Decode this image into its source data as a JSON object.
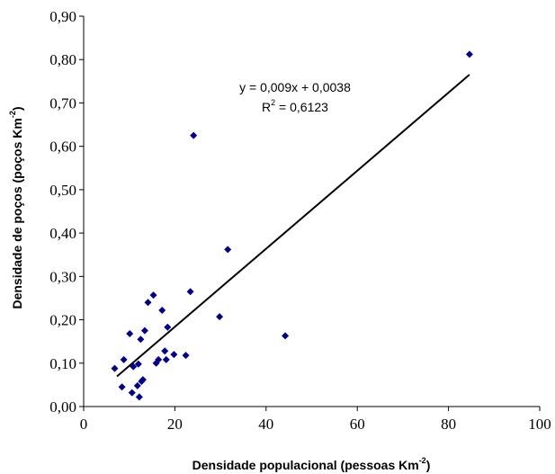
{
  "chart_data": {
    "type": "scatter",
    "xlabel": "Densidade populacional (pessoas Km",
    "xlabel_sup": "-2",
    "xlabel_tail": ")",
    "ylabel": "Densidade de poços (poços Km",
    "ylabel_sup": "-2",
    "ylabel_tail": ")",
    "xlim": [
      0,
      100
    ],
    "ylim": [
      0,
      0.9
    ],
    "xticks": [
      0,
      20,
      40,
      60,
      80,
      100
    ],
    "xtick_labels": [
      "0",
      "20",
      "40",
      "60",
      "80",
      "100"
    ],
    "yticks": [
      0,
      0.1,
      0.2,
      0.3,
      0.4,
      0.5,
      0.6,
      0.7,
      0.8,
      0.9
    ],
    "ytick_labels": [
      "0,00",
      "0,10",
      "0,20",
      "0,30",
      "0,40",
      "0,50",
      "0,60",
      "0,70",
      "0,80",
      "0,90"
    ],
    "grid": false,
    "marker_color": "#00008B",
    "trendline": {
      "slope": 0.009,
      "intercept": 0.0038,
      "x_range": [
        7.3,
        84.6
      ],
      "color": "#000000"
    },
    "equation": "y = 0,009x + 0,0038",
    "r2_prefix": "R",
    "r2_sup": "2",
    "r2_value": " = 0,6123",
    "points": [
      {
        "x": 6.8,
        "y": 0.088
      },
      {
        "x": 8.4,
        "y": 0.045
      },
      {
        "x": 8.8,
        "y": 0.108
      },
      {
        "x": 10.1,
        "y": 0.168
      },
      {
        "x": 10.6,
        "y": 0.032
      },
      {
        "x": 10.9,
        "y": 0.092
      },
      {
        "x": 11.8,
        "y": 0.048
      },
      {
        "x": 12.0,
        "y": 0.098
      },
      {
        "x": 12.2,
        "y": 0.022
      },
      {
        "x": 12.5,
        "y": 0.155
      },
      {
        "x": 12.7,
        "y": 0.058
      },
      {
        "x": 13.0,
        "y": 0.062
      },
      {
        "x": 13.4,
        "y": 0.175
      },
      {
        "x": 14.1,
        "y": 0.24
      },
      {
        "x": 15.3,
        "y": 0.257
      },
      {
        "x": 15.9,
        "y": 0.1
      },
      {
        "x": 16.4,
        "y": 0.108
      },
      {
        "x": 17.2,
        "y": 0.222
      },
      {
        "x": 17.8,
        "y": 0.128
      },
      {
        "x": 18.1,
        "y": 0.108
      },
      {
        "x": 18.4,
        "y": 0.183
      },
      {
        "x": 19.8,
        "y": 0.12
      },
      {
        "x": 22.4,
        "y": 0.118
      },
      {
        "x": 23.4,
        "y": 0.265
      },
      {
        "x": 24.1,
        "y": 0.625
      },
      {
        "x": 29.8,
        "y": 0.207
      },
      {
        "x": 31.6,
        "y": 0.362
      },
      {
        "x": 44.2,
        "y": 0.163
      },
      {
        "x": 84.6,
        "y": 0.812
      }
    ]
  }
}
